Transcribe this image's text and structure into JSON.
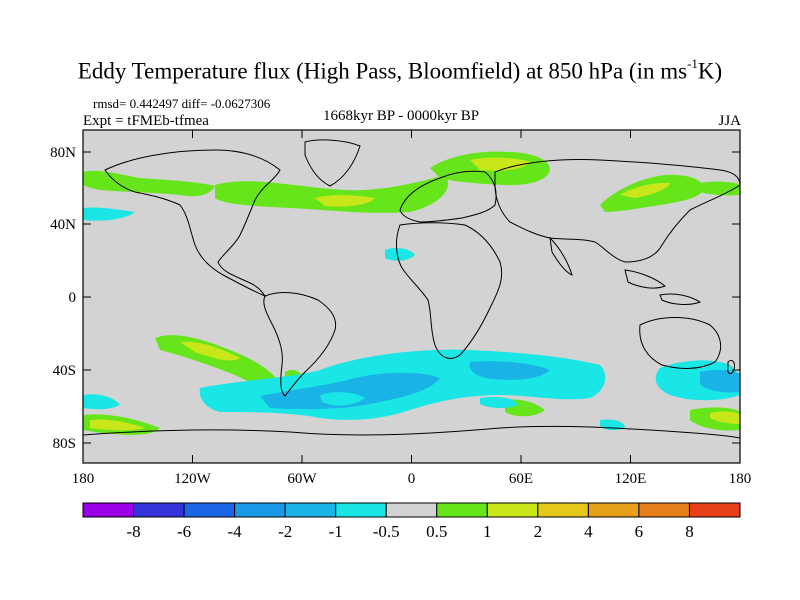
{
  "header": {
    "title_main": "Eddy Temperature flux (High Pass, Bloomfield) at 850 hPa (in ms",
    "title_sup": "-1",
    "title_end": "K)",
    "stats": "rmsd= 0.442497 diff= -0.0627306",
    "experiment": "Expt = tFMEb-tfmea",
    "period": "1668kyr BP - 0000kyr BP",
    "season": "JJA"
  },
  "map": {
    "lat_labels": [
      "80N",
      "40N",
      "0",
      "40S",
      "80S"
    ],
    "lon_labels": [
      "180",
      "120W",
      "60W",
      "0",
      "60E",
      "120E",
      "180"
    ],
    "background_value_color": "#d3d3d3",
    "regions": [
      {
        "name": "north-atlantic-storm-track",
        "value": 1
      },
      {
        "name": "north-pacific-band",
        "value": 1
      },
      {
        "name": "scandinavia-barents",
        "value": 2
      },
      {
        "name": "south-pacific-band",
        "value": 2
      },
      {
        "name": "southern-ocean-negative",
        "value": -1
      },
      {
        "name": "indian-ocean-negative",
        "value": -2
      }
    ]
  },
  "colorbar": {
    "colors": [
      "#9900e6",
      "#3333d9",
      "#1a66e6",
      "#1a99e6",
      "#1ab3e6",
      "#1ae6e6",
      "#d3d3d3",
      "#66e61a",
      "#c8e61a",
      "#e6c81a",
      "#e6a01a",
      "#e6801a",
      "#e6401a"
    ],
    "labels": [
      "-8",
      "-6",
      "-4",
      "-2",
      "-1",
      "-0.5",
      "0.5",
      "1",
      "2",
      "4",
      "6",
      "8"
    ]
  }
}
